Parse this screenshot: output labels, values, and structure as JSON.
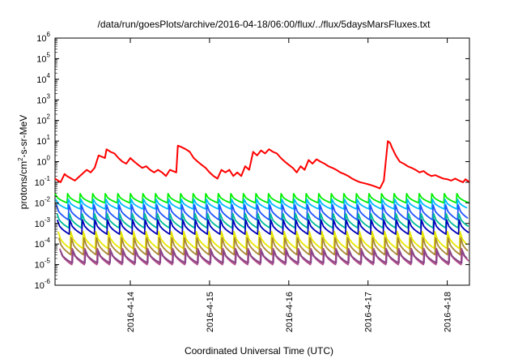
{
  "chart_data": {
    "type": "line",
    "title": "/data/run/goesPlots/archive/2016-04-18/06:00/flux/../flux/5daysMarsFluxes.txt",
    "xlabel": "Coordinated Universal Time (UTC)",
    "ylabel": {
      "prefix": "protons/cm",
      "sup": "2",
      "suffix": "-s-sr-MeV"
    },
    "yscale": "log",
    "ylim_exponent": [
      -6,
      6
    ],
    "y_tick_exponents": [
      -6,
      -5,
      -4,
      -3,
      -2,
      -1,
      0,
      1,
      2,
      3,
      4,
      5,
      6
    ],
    "y_tick_base": "10",
    "xlim_days": [
      13.05,
      18.28
    ],
    "x_ticks": [
      {
        "day": 14,
        "label": "2016-4-14"
      },
      {
        "day": 15,
        "label": "2016-4-15"
      },
      {
        "day": 16,
        "label": "2016-4-16"
      },
      {
        "day": 17,
        "label": "2016-4-17"
      },
      {
        "day": 18,
        "label": "2016-4-18"
      }
    ],
    "grid": false,
    "series": [
      {
        "color": "#ff0000",
        "x": [
          13.05,
          13.12,
          13.17,
          13.2,
          13.3,
          13.45,
          13.5,
          13.55,
          13.6,
          13.68,
          13.7,
          13.75,
          13.8,
          13.85,
          13.9,
          13.95,
          14.0,
          14.05,
          14.1,
          14.15,
          14.2,
          14.25,
          14.3,
          14.35,
          14.4,
          14.45,
          14.5,
          14.58,
          14.6,
          14.65,
          14.7,
          14.75,
          14.8,
          14.85,
          14.9,
          14.95,
          15.0,
          15.05,
          15.1,
          15.15,
          15.2,
          15.25,
          15.3,
          15.35,
          15.4,
          15.45,
          15.5,
          15.55,
          15.6,
          15.65,
          15.7,
          15.75,
          15.8,
          15.85,
          15.9,
          15.95,
          16.0,
          16.05,
          16.1,
          16.15,
          16.2,
          16.25,
          16.3,
          16.35,
          16.4,
          16.45,
          16.5,
          16.55,
          16.6,
          16.65,
          16.7,
          16.75,
          16.8,
          16.85,
          16.9,
          16.95,
          17.0,
          17.05,
          17.1,
          17.15,
          17.2,
          17.25,
          17.28,
          17.3,
          17.35,
          17.4,
          17.45,
          17.5,
          17.55,
          17.6,
          17.65,
          17.7,
          17.75,
          17.8,
          17.85,
          17.9,
          17.95,
          18.0,
          18.05,
          18.1,
          18.15,
          18.2,
          18.23,
          18.28
        ],
        "y": [
          0.15,
          0.1,
          0.25,
          0.2,
          0.12,
          0.4,
          0.3,
          0.5,
          2.0,
          1.5,
          4.0,
          3.0,
          2.5,
          1.5,
          1.0,
          0.8,
          1.5,
          1.0,
          0.7,
          0.5,
          0.6,
          0.4,
          0.3,
          0.4,
          0.3,
          0.2,
          0.4,
          0.3,
          6.0,
          5.0,
          4.0,
          3.0,
          1.5,
          1.0,
          0.7,
          0.5,
          0.3,
          0.2,
          0.15,
          0.4,
          0.3,
          0.4,
          0.2,
          0.3,
          0.2,
          0.6,
          0.4,
          3.0,
          2.0,
          3.5,
          2.5,
          4.0,
          3.0,
          2.5,
          1.5,
          1.0,
          0.7,
          0.5,
          0.3,
          0.6,
          0.4,
          1.2,
          0.8,
          1.3,
          1.0,
          0.8,
          0.6,
          0.5,
          0.4,
          0.3,
          0.25,
          0.2,
          0.15,
          0.12,
          0.1,
          0.09,
          0.08,
          0.07,
          0.06,
          0.05,
          0.12,
          10.0,
          8.0,
          5.0,
          2.0,
          1.0,
          0.8,
          0.6,
          0.5,
          0.4,
          0.3,
          0.35,
          0.25,
          0.2,
          0.22,
          0.18,
          0.15,
          0.14,
          0.12,
          0.15,
          0.12,
          0.1,
          0.14,
          0.1
        ]
      },
      {
        "color": "#00ee00",
        "start_low": 0.01,
        "peak": 0.028,
        "cycles": 33,
        "phase": 0.0
      },
      {
        "color": "#00bbff",
        "start_low": 0.005,
        "peak": 0.015,
        "cycles": 33,
        "phase": 0.1
      },
      {
        "color": "#2255ff",
        "start_low": 0.0015,
        "peak": 0.008,
        "cycles": 33,
        "phase": 0.2
      },
      {
        "color": "#00bb99",
        "start_low": 0.0006,
        "peak": 0.003,
        "cycles": 33,
        "phase": 0.3
      },
      {
        "color": "#0000bb",
        "start_low": 0.0003,
        "peak": 0.0015,
        "cycles": 33,
        "phase": 0.35
      },
      {
        "color": "#e8e800",
        "start_low": 6e-05,
        "peak": 0.0004,
        "cycles": 33,
        "phase": 0.5
      },
      {
        "color": "#aa8833",
        "start_low": 3e-05,
        "peak": 0.0002,
        "cycles": 33,
        "phase": 0.6
      },
      {
        "color": "#b45088",
        "start_low": 1e-05,
        "peak": 6e-05,
        "cycles": 33,
        "phase": 0.75
      },
      {
        "color": "#884488",
        "start_low": 1.2e-05,
        "peak": 5e-05,
        "cycles": 33,
        "phase": 0.85
      }
    ]
  }
}
